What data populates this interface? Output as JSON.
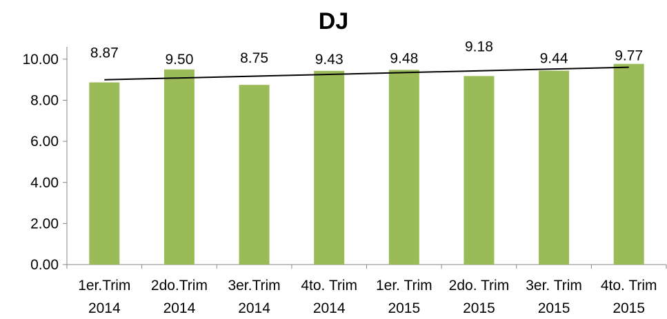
{
  "chart_data": {
    "type": "bar",
    "title": "DJ",
    "categories": [
      [
        "1er.Trim",
        "2014"
      ],
      [
        "2do.Trim",
        "2014"
      ],
      [
        "3er.Trim",
        "2014"
      ],
      [
        "4to. Trim",
        "2014"
      ],
      [
        "1er. Trim",
        "2015"
      ],
      [
        "2do. Trim",
        "2015"
      ],
      [
        "3er. Trim",
        "2015"
      ],
      [
        "4to. Trim",
        "2015"
      ]
    ],
    "values": [
      8.87,
      9.5,
      8.75,
      9.43,
      9.48,
      9.18,
      9.44,
      9.77
    ],
    "data_labels": [
      "8.87",
      "9.50",
      "8.75",
      "9.43",
      "9.48",
      "9.18",
      "9.44",
      "9.77"
    ],
    "y_ticks": [
      "0.00",
      "2.00",
      "4.00",
      "6.00",
      "8.00",
      "10.00"
    ],
    "ylim": [
      0,
      10.6
    ],
    "trendline": "linear",
    "grid": false,
    "legend": "none",
    "colors": {
      "bar": "#9bbb59",
      "trendline": "#000000",
      "axis": "#868686"
    }
  }
}
